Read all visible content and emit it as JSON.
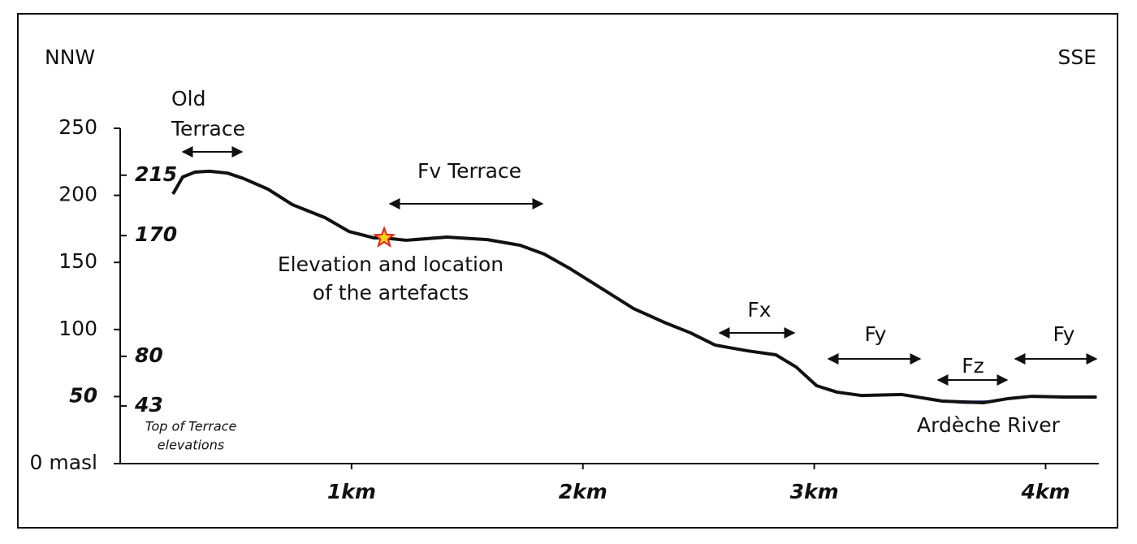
{
  "chart_data": {
    "type": "line",
    "x": [
      0.228,
      0.27,
      0.323,
      0.386,
      0.464,
      0.534,
      0.639,
      0.745,
      0.885,
      0.99,
      1.096,
      1.141,
      1.236,
      1.412,
      1.587,
      1.728,
      1.833,
      1.939,
      2.079,
      2.219,
      2.36,
      2.465,
      2.571,
      2.711,
      2.834,
      2.922,
      3.01,
      3.098,
      3.203,
      3.379,
      3.554,
      3.73,
      3.835,
      3.94,
      4.081,
      4.221
    ],
    "values": [
      201,
      213.7,
      217.3,
      218,
      216.6,
      212.5,
      204.6,
      193,
      183.4,
      173,
      168.3,
      168.3,
      166.5,
      168.9,
      167,
      162.8,
      156.2,
      145.9,
      130.8,
      115.6,
      104.7,
      97.5,
      88.4,
      84.1,
      81.1,
      72,
      58.1,
      53.3,
      50.8,
      51.5,
      46.6,
      45.4,
      48.4,
      50.2,
      49.6,
      49.6
    ],
    "color": "#111111",
    "xlim": [
      0,
      4.23
    ],
    "ylim": [
      0,
      250
    ],
    "xticks": [
      {
        "value": 1,
        "label": "1km"
      },
      {
        "value": 2,
        "label": "2km"
      },
      {
        "value": 3,
        "label": "3km"
      },
      {
        "value": 4,
        "label": "4km"
      }
    ],
    "yticks": [
      {
        "value": 0,
        "label": "0 masl"
      },
      50,
      100,
      150,
      200,
      250
    ],
    "elevation_labels": [
      215,
      170,
      80,
      43
    ],
    "elevation_labels_title": [
      "Top of Terrace",
      "elevations"
    ],
    "artefact_site": {
      "x": 1.141,
      "y": 168.3,
      "label": [
        "Elevation and location",
        "of the artefacts"
      ]
    },
    "left_direction": "NNW",
    "right_direction": "SSE",
    "annotations": [
      {
        "text": [
          "Old",
          "Terrace"
        ]
      },
      {
        "text": [
          "Fv Terrace"
        ]
      },
      {
        "text": [
          "Fx"
        ]
      },
      {
        "text": [
          "Fy"
        ]
      },
      {
        "text": [
          "Fz"
        ]
      },
      {
        "text": [
          "Fy"
        ]
      }
    ],
    "river_label": "Ardèche River",
    "river_color": "#2b3ab0"
  }
}
